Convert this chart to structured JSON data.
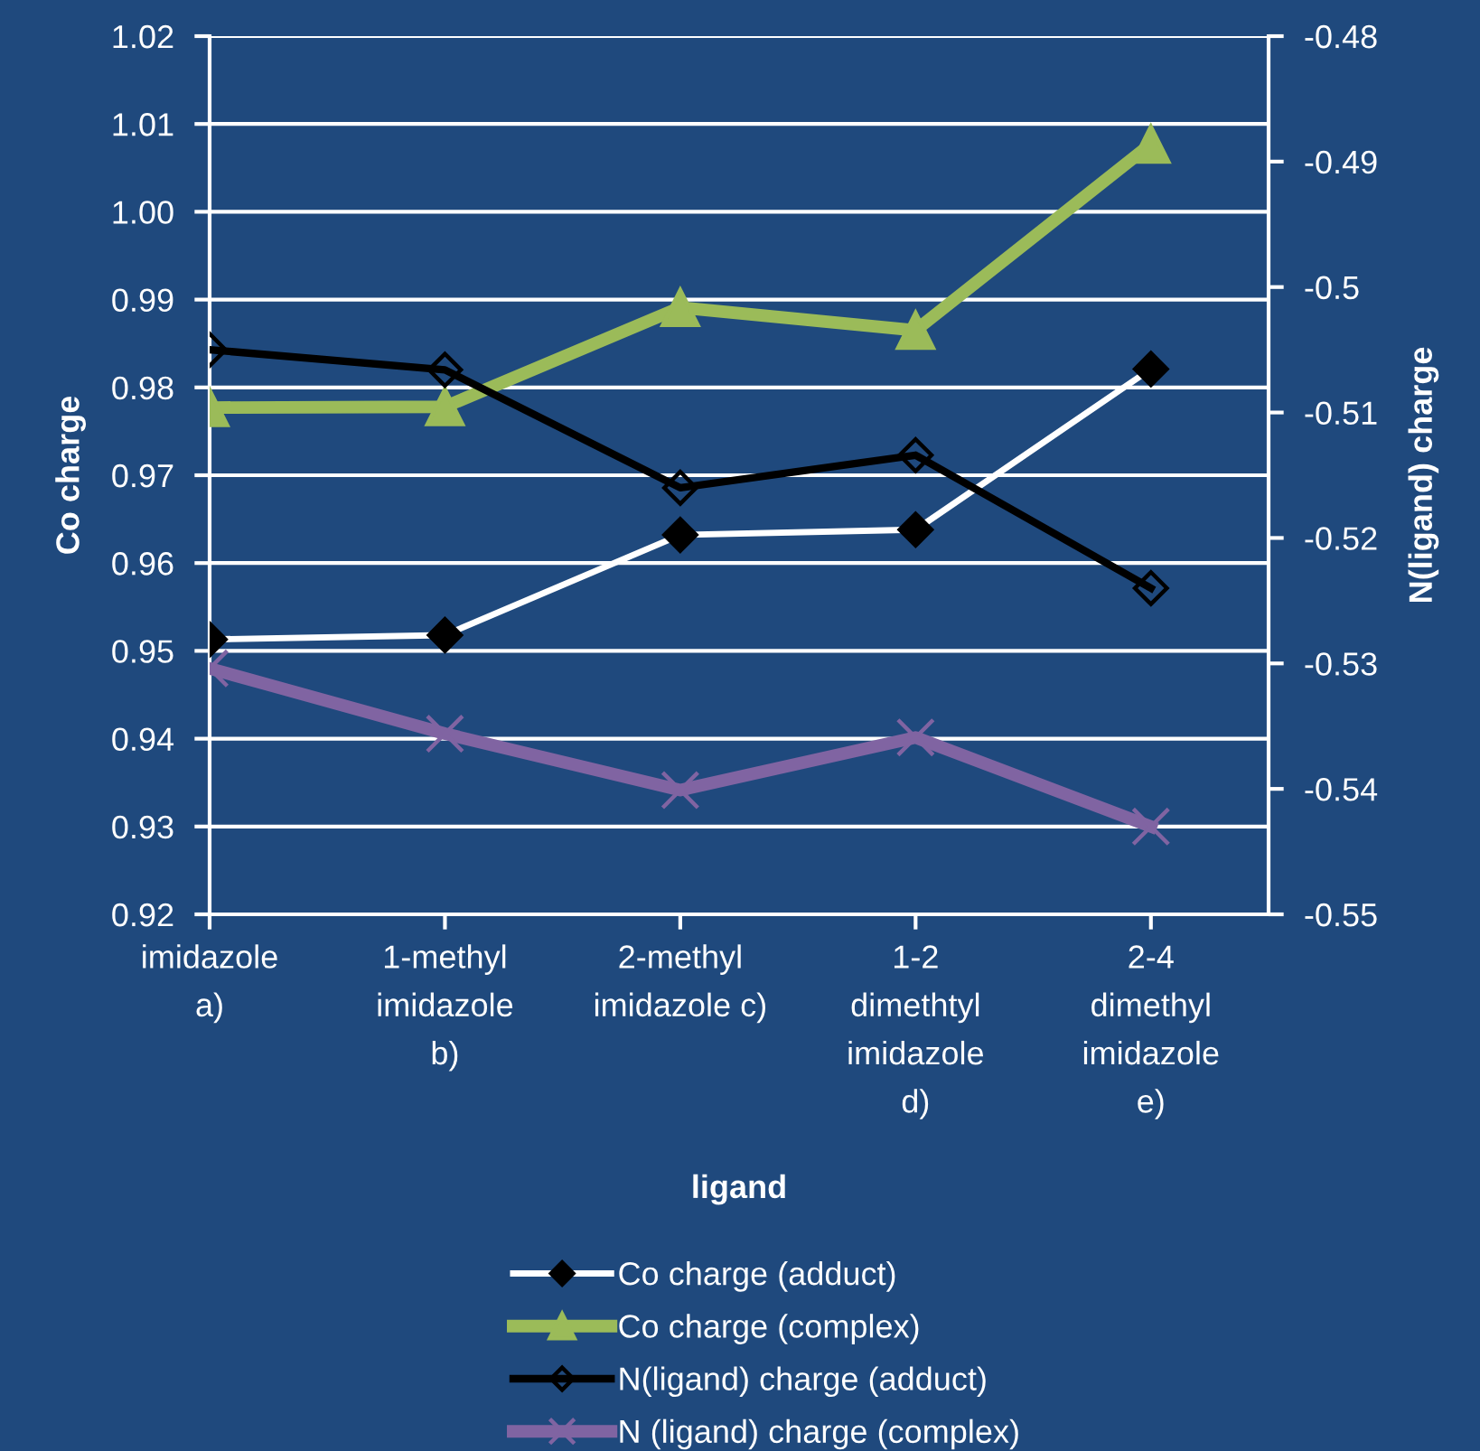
{
  "chart_data": {
    "type": "line",
    "xlabel": "ligand",
    "ylabel": "Co charge",
    "y2label": "N(ligand) charge",
    "categories": [
      "imidazole\na)",
      "1-methyl\nimidazole\nb)",
      "2-methyl\nimidazole c)",
      "1-2\ndimethtyl\nimidazole\nd)",
      "2-4\ndimethyl\nimidazole\ne)"
    ],
    "series": [
      {
        "name": "Co charge (adduct)",
        "color": "#ffffff",
        "marker": "diamond",
        "values": [
          0.9513,
          0.9518,
          0.9632,
          0.9638,
          0.9821
        ]
      },
      {
        "name": "Co charge (complex)",
        "color": "#9bbb59",
        "marker": "triangle",
        "values": [
          0.9777,
          0.9778,
          0.9891,
          0.9865,
          1.0077
        ]
      },
      {
        "name": "N(ligand) charge (adduct)",
        "color": "#000000",
        "marker": "diamond",
        "axis": "y2",
        "values": [
          -0.505,
          -0.5066,
          -0.516,
          -0.5134,
          -0.524
        ]
      },
      {
        "name": "N (ligand) charge (complex)",
        "color": "#8064a2",
        "marker": "cross",
        "axis": "y2",
        "values": [
          -0.5304,
          -0.5356,
          -0.5401,
          -0.5359,
          -0.543
        ]
      }
    ],
    "ylim": [
      0.92,
      1.02
    ],
    "yticks": [
      0.92,
      0.93,
      0.94,
      0.95,
      0.96,
      0.97,
      0.98,
      0.99,
      {
        "value": 1.0,
        "label": "1.00"
      },
      1.01,
      1.02
    ],
    "y2lim": [
      -0.55,
      -0.48
    ],
    "y2ticks": [
      -0.55,
      -0.54,
      -0.53,
      -0.52,
      -0.51,
      -0.5,
      -0.49,
      -0.48
    ],
    "grid": "y",
    "legend": "bottom"
  }
}
